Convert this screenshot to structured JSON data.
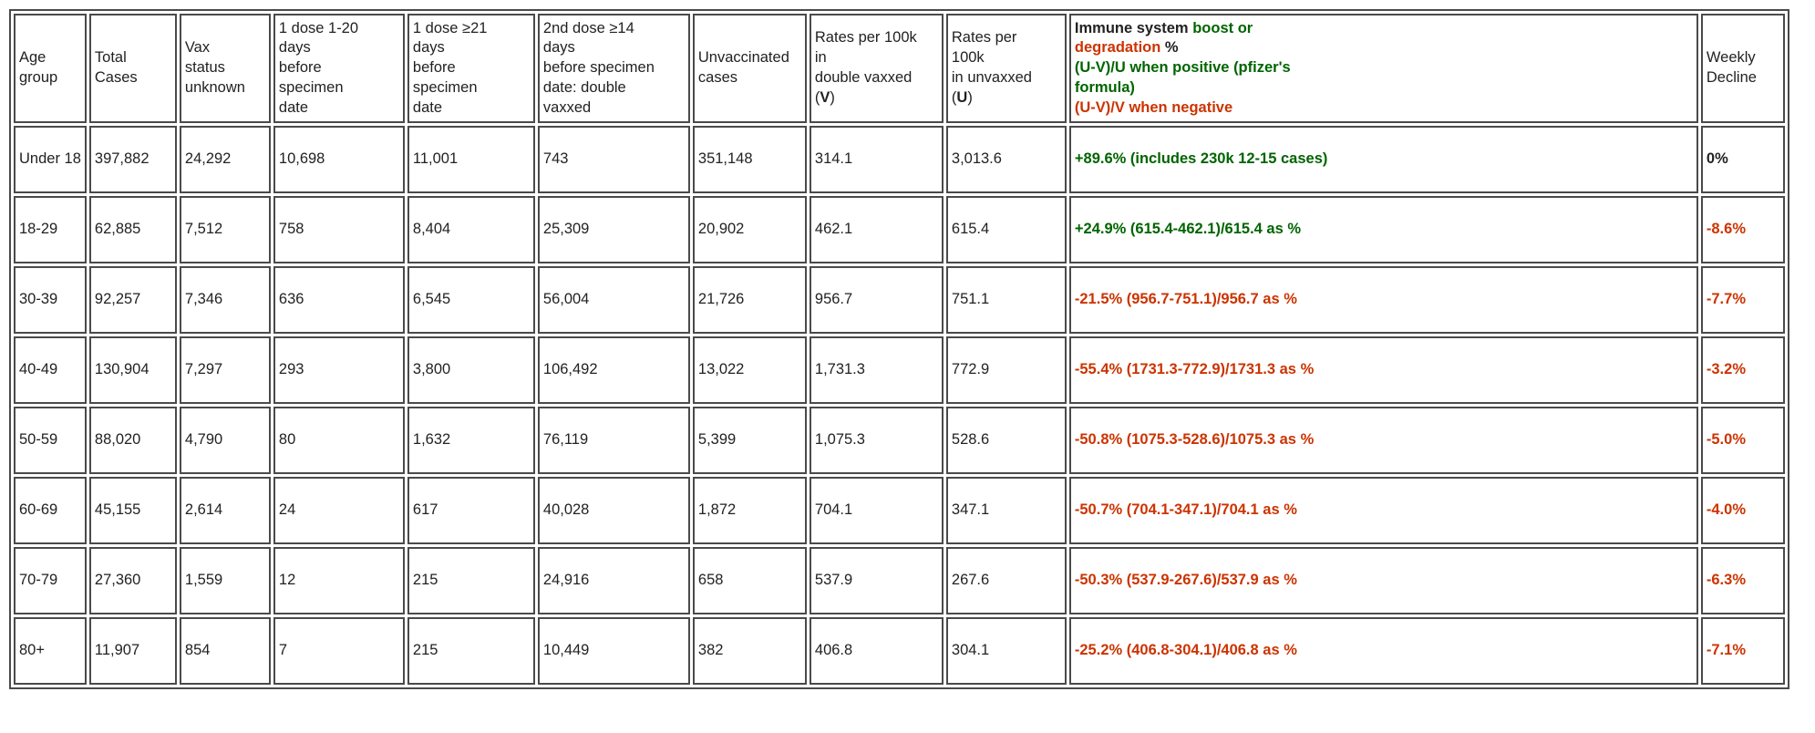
{
  "colors": {
    "green": "#006400",
    "red": "#cc3300",
    "black": "#222222"
  },
  "chart_data": {
    "type": "table",
    "columns": [
      {
        "id": "age",
        "segments": [
          {
            "t": "Age\ngroup"
          }
        ]
      },
      {
        "id": "total",
        "segments": [
          {
            "t": "Total\nCases"
          }
        ]
      },
      {
        "id": "vax_unknown",
        "segments": [
          {
            "t": "Vax\nstatus\nunknown"
          }
        ]
      },
      {
        "id": "dose1_1_20",
        "segments": [
          {
            "t": "1 dose 1-20\ndays\nbefore\nspecimen\ndate"
          }
        ]
      },
      {
        "id": "dose1_21",
        "segments": [
          {
            "t": "1 dose ≥21\ndays\nbefore\nspecimen\ndate"
          }
        ]
      },
      {
        "id": "dose2_14",
        "segments": [
          {
            "t": "2nd dose ≥14\ndays\nbefore specimen\ndate: double\nvaxxed"
          }
        ]
      },
      {
        "id": "unvaccinated",
        "segments": [
          {
            "t": "Unvaccinated\ncases"
          }
        ]
      },
      {
        "id": "rate_v",
        "segments": [
          {
            "t": "Rates per 100k\nin\ndouble vaxxed\n("
          },
          {
            "t": "V",
            "b": true
          },
          {
            "t": ")"
          }
        ]
      },
      {
        "id": "rate_u",
        "segments": [
          {
            "t": "Rates per\n100k\nin unvaxxed\n("
          },
          {
            "t": "U",
            "b": true
          },
          {
            "t": ")"
          }
        ]
      },
      {
        "id": "immune",
        "segments": [
          {
            "t": "Immune system ",
            "b": true,
            "c": "black"
          },
          {
            "t": "boost or",
            "b": true,
            "c": "green"
          },
          {
            "t": "\ndegradation",
            "b": true,
            "c": "red"
          },
          {
            "t": " %",
            "b": true,
            "c": "black"
          },
          {
            "t": "\n(U-V)/U when positive (pfizer's\nformula)",
            "b": true,
            "c": "green"
          },
          {
            "t": "\n(U-V)/V when negative",
            "b": true,
            "c": "red"
          }
        ]
      },
      {
        "id": "weekly",
        "segments": [
          {
            "t": "Weekly\nDecline"
          }
        ]
      }
    ],
    "rows": [
      {
        "cells": {
          "age": "Under 18",
          "total": "397,882",
          "vax_unknown": "24,292",
          "dose1_1_20": "10,698",
          "dose1_21": "11,001",
          "dose2_14": "743",
          "unvaccinated": "351,148",
          "rate_v": "314.1",
          "rate_u": "3,013.6",
          "immune": {
            "t": "+89.6% (includes 230k 12-15 cases)",
            "c": "green",
            "b": true
          },
          "weekly": {
            "t": "0%",
            "c": "black",
            "b": true
          }
        }
      },
      {
        "cells": {
          "age": "18-29",
          "total": "62,885",
          "vax_unknown": "7,512",
          "dose1_1_20": "758",
          "dose1_21": "8,404",
          "dose2_14": "25,309",
          "unvaccinated": "20,902",
          "rate_v": "462.1",
          "rate_u": "615.4",
          "immune": {
            "t": "+24.9% (615.4-462.1)/615.4 as %",
            "c": "green",
            "b": true
          },
          "weekly": {
            "t": "-8.6%",
            "c": "red",
            "b": true
          }
        }
      },
      {
        "cells": {
          "age": "30-39",
          "total": "92,257",
          "vax_unknown": "7,346",
          "dose1_1_20": "636",
          "dose1_21": "6,545",
          "dose2_14": "56,004",
          "unvaccinated": "21,726",
          "rate_v": "956.7",
          "rate_u": "751.1",
          "immune": {
            "t": "-21.5% (956.7-751.1)/956.7 as %",
            "c": "red",
            "b": true
          },
          "weekly": {
            "t": "-7.7%",
            "c": "red",
            "b": true
          }
        }
      },
      {
        "cells": {
          "age": "40-49",
          "total": "130,904",
          "vax_unknown": "7,297",
          "dose1_1_20": "293",
          "dose1_21": "3,800",
          "dose2_14": "106,492",
          "unvaccinated": "13,022",
          "rate_v": "1,731.3",
          "rate_u": "772.9",
          "immune": {
            "t": "-55.4% (1731.3-772.9)/1731.3 as %",
            "c": "red",
            "b": true
          },
          "weekly": {
            "t": "-3.2%",
            "c": "red",
            "b": true
          }
        }
      },
      {
        "cells": {
          "age": "50-59",
          "total": "88,020",
          "vax_unknown": "4,790",
          "dose1_1_20": "80",
          "dose1_21": "1,632",
          "dose2_14": "76,119",
          "unvaccinated": "5,399",
          "rate_v": "1,075.3",
          "rate_u": "528.6",
          "immune": {
            "t": "-50.8% (1075.3-528.6)/1075.3 as %",
            "c": "red",
            "b": true
          },
          "weekly": {
            "t": "-5.0%",
            "c": "red",
            "b": true
          }
        }
      },
      {
        "cells": {
          "age": "60-69",
          "total": "45,155",
          "vax_unknown": "2,614",
          "dose1_1_20": "24",
          "dose1_21": "617",
          "dose2_14": "40,028",
          "unvaccinated": "1,872",
          "rate_v": "704.1",
          "rate_u": "347.1",
          "immune": {
            "t": "-50.7% (704.1-347.1)/704.1 as %",
            "c": "red",
            "b": true
          },
          "weekly": {
            "t": "-4.0%",
            "c": "red",
            "b": true
          }
        }
      },
      {
        "cells": {
          "age": "70-79",
          "total": "27,360",
          "vax_unknown": "1,559",
          "dose1_1_20": "12",
          "dose1_21": "215",
          "dose2_14": "24,916",
          "unvaccinated": "658",
          "rate_v": "537.9",
          "rate_u": "267.6",
          "immune": {
            "t": "-50.3% (537.9-267.6)/537.9 as %",
            "c": "red",
            "b": true
          },
          "weekly": {
            "t": "-6.3%",
            "c": "red",
            "b": true
          }
        }
      },
      {
        "cells": {
          "age": "80+",
          "total": "11,907",
          "vax_unknown": "854",
          "dose1_1_20": "7",
          "dose1_21": "215",
          "dose2_14": "10,449",
          "unvaccinated": "382",
          "rate_v": "406.8",
          "rate_u": "304.1",
          "immune": {
            "t": "-25.2% (406.8-304.1)/406.8 as %",
            "c": "red",
            "b": true
          },
          "weekly": {
            "t": "-7.1%",
            "c": "red",
            "b": true
          }
        }
      }
    ]
  }
}
